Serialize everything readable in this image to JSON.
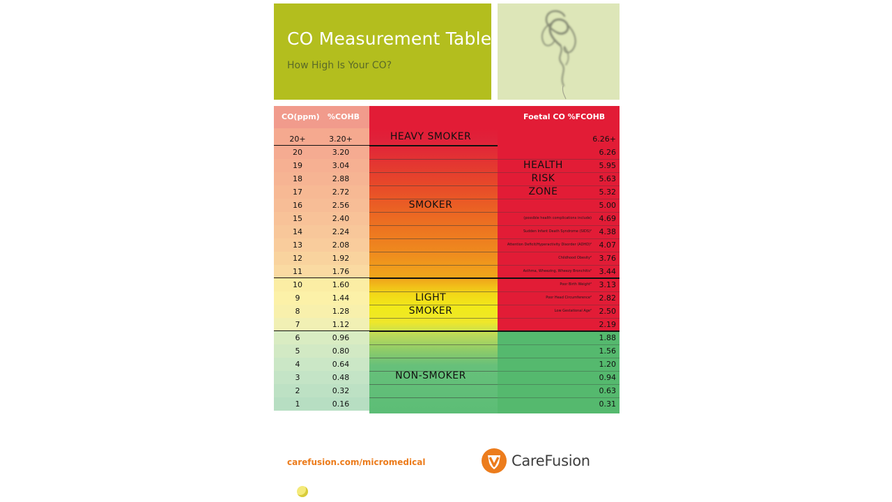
{
  "header": {
    "title": "CO Measurement Table",
    "subtitle": "How High Is Your CO?"
  },
  "table": {
    "col_ppm": "CO(ppm)",
    "col_pct": "%COHB",
    "col_foetal": "Foetal CO %FCOHB",
    "rows": [
      {
        "ppm": "20+",
        "cohb": "3.20+",
        "fcohb": "6.26+"
      },
      {
        "ppm": "20",
        "cohb": "3.20",
        "fcohb": "6.26"
      },
      {
        "ppm": "19",
        "cohb": "3.04",
        "fcohb": "5.95"
      },
      {
        "ppm": "18",
        "cohb": "2.88",
        "fcohb": "5.63"
      },
      {
        "ppm": "17",
        "cohb": "2.72",
        "fcohb": "5.32"
      },
      {
        "ppm": "16",
        "cohb": "2.56",
        "fcohb": "5.00"
      },
      {
        "ppm": "15",
        "cohb": "2.40",
        "fcohb": "4.69"
      },
      {
        "ppm": "14",
        "cohb": "2.24",
        "fcohb": "4.38"
      },
      {
        "ppm": "13",
        "cohb": "2.08",
        "fcohb": "4.07"
      },
      {
        "ppm": "12",
        "cohb": "1.92",
        "fcohb": "3.76"
      },
      {
        "ppm": "11",
        "cohb": "1.76",
        "fcohb": "3.44"
      },
      {
        "ppm": "10",
        "cohb": "1.60",
        "fcohb": "3.13"
      },
      {
        "ppm": "9",
        "cohb": "1.44",
        "fcohb": "2.82"
      },
      {
        "ppm": "8",
        "cohb": "1.28",
        "fcohb": "2.50"
      },
      {
        "ppm": "7",
        "cohb": "1.12",
        "fcohb": "2.19"
      },
      {
        "ppm": "6",
        "cohb": "0.96",
        "fcohb": "1.88"
      },
      {
        "ppm": "5",
        "cohb": "0.80",
        "fcohb": "1.56"
      },
      {
        "ppm": "4",
        "cohb": "0.64",
        "fcohb": "1.20"
      },
      {
        "ppm": "3",
        "cohb": "0.48",
        "fcohb": "0.94"
      },
      {
        "ppm": "2",
        "cohb": "0.32",
        "fcohb": "0.63"
      },
      {
        "ppm": "1",
        "cohb": "0.16",
        "fcohb": "0.31"
      }
    ],
    "zones": {
      "heavy": "HEAVY SMOKER",
      "smoker": "SMOKER",
      "light_1": "LIGHT",
      "light_2": "SMOKER",
      "non": "NON-SMOKER"
    },
    "health_zone": [
      "HEALTH",
      "RISK",
      "ZONE"
    ],
    "complications": [
      "(possible health complications include)",
      "Sudden Infant Death Syndrome (SIDS)²",
      "Attention Deficit/Hyperactivity Disorder (ADHD)²",
      "Childhood Obesity²",
      "Asthma, Wheezing, Wheezy Bronchitis²",
      "Poor Birth Weight²",
      "Poor Head Circumference²",
      "Low Gestational Age²"
    ]
  },
  "footer": {
    "url": "carefusion.com/micromedical",
    "brand": "CareFusion"
  },
  "colors": {
    "banner": "#b3be1e",
    "heavy_red": "#e21c36",
    "non_smoker_green": "#55b96e",
    "header_pink": "#f19b8c",
    "brand_orange": "#ec7c1c"
  }
}
